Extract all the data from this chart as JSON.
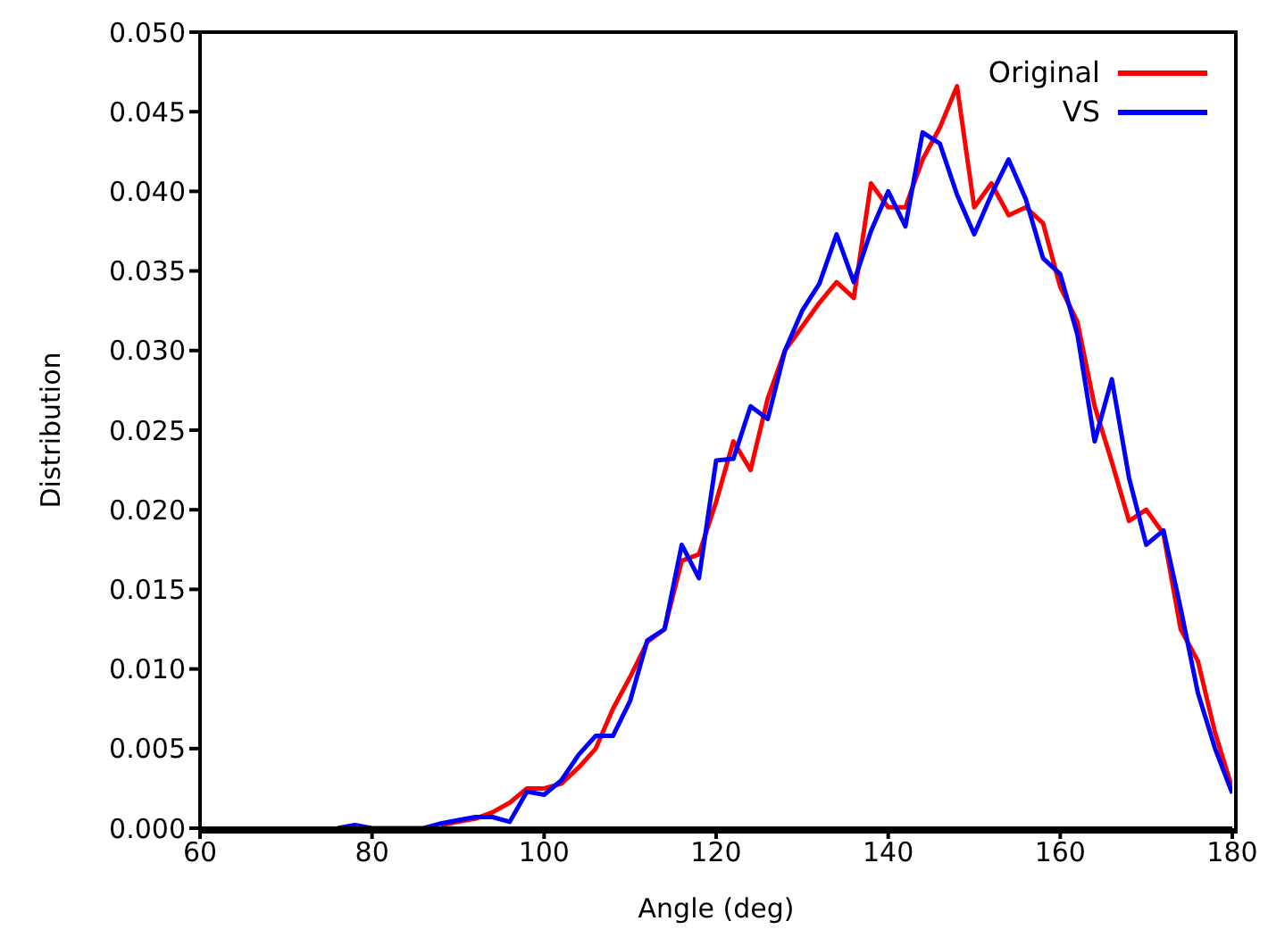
{
  "chart_data": {
    "type": "line",
    "xlabel": "Angle (deg)",
    "ylabel": "Distribution",
    "x": [
      76,
      78,
      80,
      82,
      84,
      86,
      88,
      90,
      92,
      94,
      96,
      98,
      100,
      102,
      104,
      106,
      108,
      110,
      112,
      114,
      116,
      118,
      120,
      122,
      124,
      126,
      128,
      130,
      132,
      134,
      136,
      138,
      140,
      142,
      144,
      146,
      148,
      150,
      152,
      154,
      156,
      158,
      160,
      162,
      164,
      166,
      168,
      170,
      172,
      174,
      176,
      178,
      180
    ],
    "series": [
      {
        "name": "Original",
        "color": "#ff0000",
        "values": [
          null,
          null,
          null,
          null,
          null,
          null,
          0.0002,
          0.0004,
          0.0006,
          0.001,
          0.0016,
          0.0025,
          0.0025,
          0.0028,
          0.0038,
          0.005,
          0.0075,
          0.0095,
          0.0117,
          0.0125,
          0.0168,
          0.0172,
          0.0205,
          0.0243,
          0.0225,
          0.027,
          0.03,
          0.0315,
          0.033,
          0.0343,
          0.0333,
          0.0405,
          0.039,
          0.039,
          0.042,
          0.044,
          0.0466,
          0.039,
          0.0405,
          0.0385,
          0.039,
          0.038,
          0.034,
          0.0318,
          0.0265,
          0.023,
          0.0193,
          0.02,
          0.0185,
          0.0125,
          0.0105,
          0.006,
          0.0025
        ]
      },
      {
        "name": "VS",
        "color": "#0000ff",
        "values": [
          0,
          0.0002,
          0,
          0,
          0,
          0,
          0.0003,
          0.0005,
          0.0007,
          0.0007,
          0.0004,
          0.0023,
          0.0021,
          0.003,
          0.0046,
          0.0058,
          0.0058,
          0.008,
          0.0118,
          0.0125,
          0.0178,
          0.0157,
          0.0231,
          0.0232,
          0.0265,
          0.0257,
          0.03,
          0.0325,
          0.0342,
          0.0373,
          0.0343,
          0.0375,
          0.04,
          0.0378,
          0.0437,
          0.043,
          0.0398,
          0.0373,
          0.0398,
          0.042,
          0.0395,
          0.0358,
          0.0348,
          0.031,
          0.0243,
          0.0282,
          0.022,
          0.0178,
          0.0187,
          0.0138,
          0.0085,
          0.005,
          0.0022
        ]
      }
    ],
    "xlim": [
      60,
      180
    ],
    "xticks": [
      60,
      80,
      100,
      120,
      140,
      160,
      180
    ],
    "ylim": [
      0,
      0.05
    ],
    "yticks": [
      {
        "value": 0,
        "label": "0.000"
      },
      {
        "value": 0.005,
        "label": "0.005"
      },
      {
        "value": 0.01,
        "label": "0.010"
      },
      {
        "value": 0.015,
        "label": "0.015"
      },
      {
        "value": 0.02,
        "label": "0.020"
      },
      {
        "value": 0.025,
        "label": "0.025"
      },
      {
        "value": 0.03,
        "label": "0.030"
      },
      {
        "value": 0.035,
        "label": "0.035"
      },
      {
        "value": 0.04,
        "label": "0.040"
      },
      {
        "value": 0.045,
        "label": "0.045"
      },
      {
        "value": 0.05,
        "label": "0.050"
      }
    ],
    "grid": false,
    "legend": "top right",
    "marker": "none",
    "line_style": "solid"
  }
}
